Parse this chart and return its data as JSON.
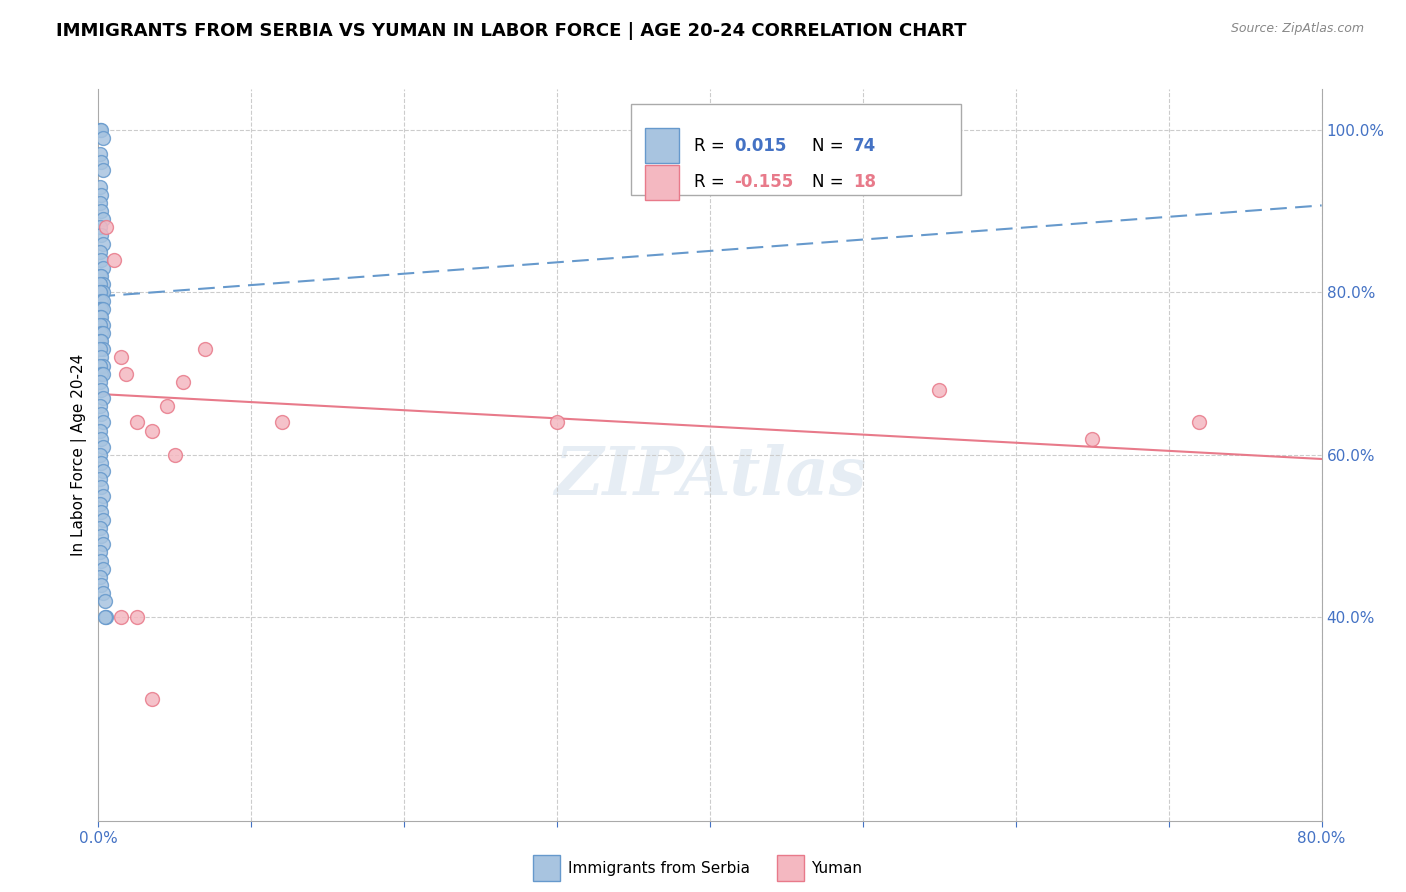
{
  "title": "IMMIGRANTS FROM SERBIA VS YUMAN IN LABOR FORCE | AGE 20-24 CORRELATION CHART",
  "source": "Source: ZipAtlas.com",
  "ylabel": "In Labor Force | Age 20-24",
  "xlim": [
    0.0,
    0.8
  ],
  "ylim": [
    0.15,
    1.05
  ],
  "xticks": [
    0.0,
    0.1,
    0.2,
    0.3,
    0.4,
    0.5,
    0.6,
    0.7,
    0.8
  ],
  "yticks_right": [
    0.4,
    0.6,
    0.8,
    1.0
  ],
  "ytick_labels_right": [
    "40.0%",
    "60.0%",
    "80.0%",
    "100.0%"
  ],
  "serbia_color": "#a8c4e0",
  "serbia_edge_color": "#6699cc",
  "yuman_color": "#f4b8c1",
  "yuman_edge_color": "#e87a8a",
  "serbia_x": [
    0.001,
    0.002,
    0.003,
    0.001,
    0.002,
    0.003,
    0.001,
    0.002,
    0.001,
    0.002,
    0.003,
    0.001,
    0.002,
    0.003,
    0.001,
    0.002,
    0.003,
    0.001,
    0.002,
    0.003,
    0.001,
    0.002,
    0.003,
    0.001,
    0.002,
    0.003,
    0.001,
    0.002,
    0.003,
    0.001,
    0.002,
    0.003,
    0.001,
    0.002,
    0.003,
    0.001,
    0.002,
    0.003,
    0.001,
    0.002,
    0.003,
    0.001,
    0.002,
    0.003,
    0.001,
    0.002,
    0.003,
    0.001,
    0.002,
    0.003,
    0.001,
    0.002,
    0.003,
    0.001,
    0.002,
    0.003,
    0.001,
    0.002,
    0.003,
    0.001,
    0.002,
    0.003,
    0.001,
    0.002,
    0.003,
    0.001,
    0.002,
    0.003,
    0.001,
    0.002,
    0.003,
    0.004,
    0.005,
    0.004
  ],
  "serbia_y": [
    1.0,
    1.0,
    0.99,
    0.97,
    0.96,
    0.95,
    0.93,
    0.92,
    0.91,
    0.9,
    0.89,
    0.88,
    0.87,
    0.86,
    0.85,
    0.84,
    0.83,
    0.82,
    0.82,
    0.81,
    0.81,
    0.8,
    0.8,
    0.8,
    0.79,
    0.79,
    0.78,
    0.78,
    0.78,
    0.77,
    0.77,
    0.76,
    0.76,
    0.75,
    0.75,
    0.74,
    0.74,
    0.73,
    0.73,
    0.72,
    0.71,
    0.71,
    0.7,
    0.7,
    0.69,
    0.68,
    0.67,
    0.66,
    0.65,
    0.64,
    0.63,
    0.62,
    0.61,
    0.6,
    0.59,
    0.58,
    0.57,
    0.56,
    0.55,
    0.54,
    0.53,
    0.52,
    0.51,
    0.5,
    0.49,
    0.48,
    0.47,
    0.46,
    0.45,
    0.44,
    0.43,
    0.42,
    0.4,
    0.4
  ],
  "yuman_x": [
    0.005,
    0.01,
    0.015,
    0.018,
    0.025,
    0.07,
    0.045,
    0.055,
    0.12,
    0.015,
    0.025,
    0.035,
    0.3,
    0.55,
    0.65,
    0.72,
    0.035,
    0.05
  ],
  "yuman_y": [
    0.88,
    0.84,
    0.72,
    0.7,
    0.64,
    0.73,
    0.66,
    0.69,
    0.64,
    0.4,
    0.4,
    0.3,
    0.64,
    0.68,
    0.62,
    0.64,
    0.63,
    0.6
  ],
  "serbia_trend": [
    0.0,
    0.795,
    0.8,
    0.907
  ],
  "yuman_trend": [
    0.0,
    0.675,
    0.8,
    0.595
  ],
  "watermark": "ZIPAtlas",
  "background_color": "#ffffff",
  "grid_color": "#cccccc",
  "axis_label_color": "#4472c4",
  "title_fontsize": 13,
  "axis_fontsize": 11,
  "tick_fontsize": 11
}
